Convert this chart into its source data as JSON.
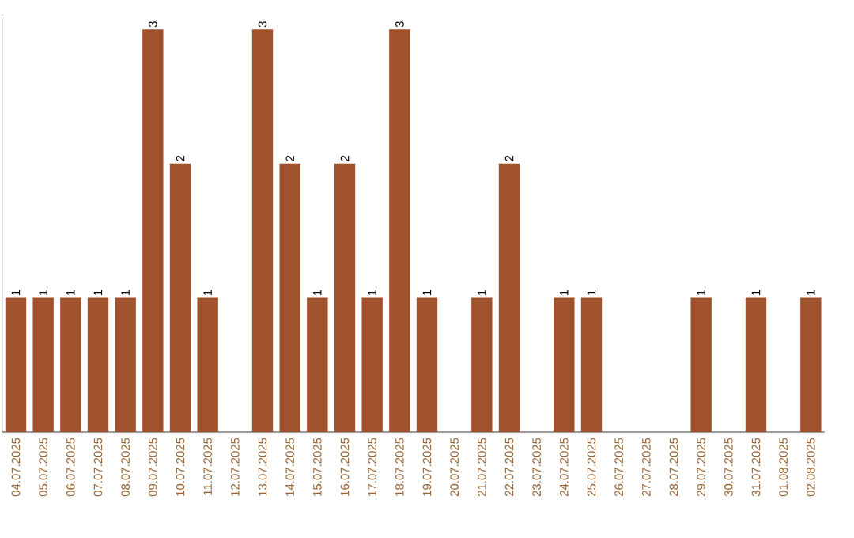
{
  "chart_data": {
    "type": "bar",
    "categories": [
      "04.07.2025",
      "05.07.2025",
      "06.07.2025",
      "07.07.2025",
      "08.07.2025",
      "09.07.2025",
      "10.07.2025",
      "11.07.2025",
      "12.07.2025",
      "13.07.2025",
      "14.07.2025",
      "15.07.2025",
      "16.07.2025",
      "17.07.2025",
      "18.07.2025",
      "19.07.2025",
      "20.07.2025",
      "21.07.2025",
      "22.07.2025",
      "23.07.2025",
      "24.07.2025",
      "25.07.2025",
      "26.07.2025",
      "27.07.2025",
      "28.07.2025",
      "29.07.2025",
      "30.07.2025",
      "31.07.2025",
      "01.08.2025",
      "02.08.2025"
    ],
    "values": [
      1,
      1,
      1,
      1,
      1,
      3,
      2,
      1,
      0,
      3,
      2,
      1,
      2,
      1,
      3,
      1,
      0,
      1,
      2,
      0,
      1,
      1,
      0,
      0,
      0,
      1,
      0,
      1,
      0,
      1
    ],
    "value_labels": [
      "1",
      "1",
      "1",
      "1",
      "1",
      "3",
      "2",
      "1",
      null,
      "3",
      "2",
      "1",
      "2",
      "1",
      "3",
      "1",
      null,
      "1",
      "2",
      null,
      "1",
      "1",
      null,
      null,
      null,
      "1",
      null,
      "1",
      null,
      "1"
    ],
    "color": "#a0522d",
    "tick_labels": "x",
    "grid": false
  }
}
